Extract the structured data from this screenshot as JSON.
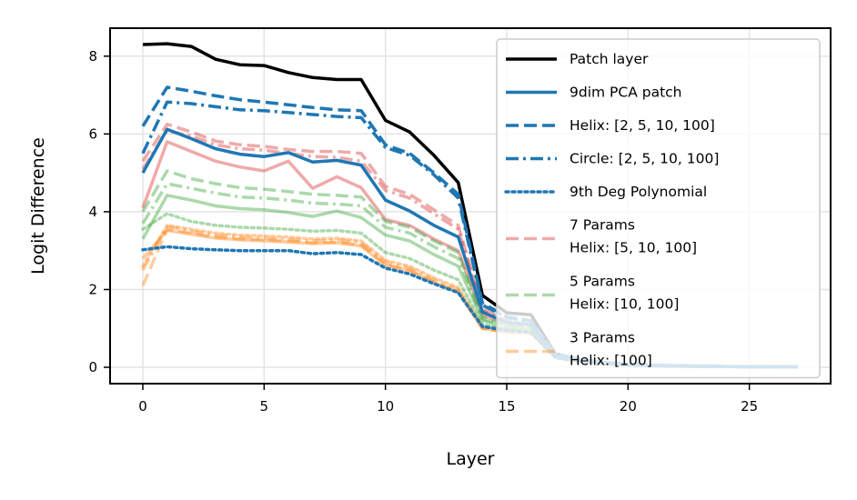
{
  "chart_data": {
    "type": "line",
    "title": "",
    "xlabel": "Layer",
    "ylabel": "Logit Difference",
    "xlim": [
      -1.35,
      28.35
    ],
    "ylim": [
      -0.42,
      8.72
    ],
    "xticks": [
      0,
      5,
      10,
      15,
      20,
      25
    ],
    "yticks": [
      0,
      2,
      4,
      6,
      8
    ],
    "grid": true,
    "legend_position": "top-right",
    "series": [
      {
        "name": "Patch layer",
        "label_lines": [
          "Patch layer"
        ],
        "color": "#000000",
        "style": "solid",
        "opacity": 1,
        "in_legend": true,
        "x": [
          0,
          1,
          2,
          3,
          4,
          5,
          6,
          7,
          8,
          9,
          10,
          11,
          12,
          13,
          14,
          15,
          16,
          17,
          18,
          19,
          20,
          21,
          22,
          23,
          24,
          25,
          26,
          27
        ],
        "values": [
          8.3,
          8.32,
          8.25,
          7.92,
          7.78,
          7.76,
          7.58,
          7.45,
          7.4,
          7.4,
          6.35,
          6.05,
          5.45,
          4.75,
          1.85,
          1.4,
          1.35,
          0.35,
          0.2,
          0.12,
          0.08,
          0.05,
          0.04,
          0.03,
          0.02,
          0.02,
          0.01,
          0.01
        ]
      },
      {
        "name": "9dim PCA patch",
        "label_lines": [
          "9dim PCA patch"
        ],
        "color": "#1f77b4",
        "style": "solid",
        "opacity": 1,
        "in_legend": true,
        "x": [
          0,
          1,
          2,
          3,
          4,
          5,
          6,
          7,
          8,
          9,
          10,
          11,
          12,
          13,
          14,
          15,
          16,
          17,
          18,
          19,
          20,
          21,
          22,
          23,
          24,
          25,
          26,
          27
        ],
        "values": [
          5.0,
          6.12,
          5.88,
          5.62,
          5.48,
          5.42,
          5.52,
          5.28,
          5.32,
          5.2,
          4.3,
          4.02,
          3.65,
          3.35,
          1.42,
          1.15,
          1.1,
          0.3,
          0.18,
          0.1,
          0.07,
          0.05,
          0.03,
          0.03,
          0.02,
          0.02,
          0.01,
          0.01
        ]
      },
      {
        "name": "Helix: [2, 5, 10, 100]",
        "label_lines": [
          "Helix: [2, 5, 10, 100]"
        ],
        "color": "#1f77b4",
        "style": "dashed",
        "opacity": 1,
        "in_legend": true,
        "x": [
          0,
          1,
          2,
          3,
          4,
          5,
          6,
          7,
          8,
          9,
          10,
          11,
          12,
          13,
          14,
          15,
          16,
          17,
          18,
          19,
          20,
          21,
          22,
          23,
          24,
          25,
          26,
          27
        ],
        "values": [
          6.2,
          7.2,
          7.1,
          6.98,
          6.88,
          6.82,
          6.75,
          6.68,
          6.62,
          6.6,
          5.72,
          5.5,
          5.0,
          4.45,
          1.65,
          1.3,
          1.2,
          0.35,
          0.2,
          0.12,
          0.08,
          0.05,
          0.04,
          0.03,
          0.02,
          0.02,
          0.01,
          0.01
        ]
      },
      {
        "name": "Circle: [2, 5, 10, 100]",
        "label_lines": [
          "Circle: [2, 5, 10, 100]"
        ],
        "color": "#1f77b4",
        "style": "dashdot",
        "opacity": 1,
        "in_legend": true,
        "x": [
          0,
          1,
          2,
          3,
          4,
          5,
          6,
          7,
          8,
          9,
          10,
          11,
          12,
          13,
          14,
          15,
          16,
          17,
          18,
          19,
          20,
          21,
          22,
          23,
          24,
          25,
          26,
          27
        ],
        "values": [
          5.5,
          6.82,
          6.78,
          6.7,
          6.62,
          6.6,
          6.55,
          6.5,
          6.45,
          6.42,
          5.65,
          5.45,
          4.95,
          4.35,
          1.6,
          1.28,
          1.18,
          0.34,
          0.2,
          0.12,
          0.08,
          0.05,
          0.04,
          0.03,
          0.02,
          0.02,
          0.01,
          0.01
        ]
      },
      {
        "name": "9th Deg Polynomial",
        "label_lines": [
          "9th Deg Polynomial"
        ],
        "color": "#1f77b4",
        "style": "dotted",
        "opacity": 1,
        "in_legend": true,
        "x": [
          0,
          1,
          2,
          3,
          4,
          5,
          6,
          7,
          8,
          9,
          10,
          11,
          12,
          13,
          14,
          15,
          16,
          17,
          18,
          19,
          20,
          21,
          22,
          23,
          24,
          25,
          26,
          27
        ],
        "values": [
          3.02,
          3.1,
          3.05,
          3.02,
          3.0,
          3.0,
          3.0,
          2.92,
          2.95,
          2.9,
          2.55,
          2.4,
          2.15,
          1.92,
          1.05,
          0.95,
          0.9,
          0.25,
          0.15,
          0.1,
          0.06,
          0.04,
          0.03,
          0.02,
          0.02,
          0.01,
          0.01,
          0.01
        ]
      },
      {
        "name": "7 Params Helix: [5, 10, 100]",
        "label_lines": [
          "7 Params",
          "Helix: [5, 10, 100]"
        ],
        "color": "#d62728",
        "style": "dashed",
        "opacity": 0.4,
        "in_legend": true,
        "x": [
          0,
          1,
          2,
          3,
          4,
          5,
          6,
          7,
          8,
          9,
          10,
          11,
          12,
          13,
          14,
          15,
          16,
          17,
          18,
          19,
          20,
          21,
          22,
          23,
          24,
          25,
          26,
          27
        ],
        "values": [
          5.3,
          6.25,
          6.05,
          5.82,
          5.72,
          5.68,
          5.6,
          5.55,
          5.55,
          5.5,
          4.65,
          4.45,
          4.05,
          3.65,
          1.5,
          1.2,
          1.12,
          0.32,
          0.18,
          0.1,
          0.07,
          0.05,
          0.03,
          0.03,
          0.02,
          0.02,
          0.01,
          0.01
        ]
      },
      {
        "name": "7 Params Helix: [5, 10, 100] (dash-dot)",
        "label_lines": [
          "7 Params Helix: [5, 10, 100] (dash-dot)"
        ],
        "color": "#d62728",
        "style": "dashdot",
        "opacity": 0.4,
        "in_legend": false,
        "x": [
          0,
          1,
          2,
          3,
          4,
          5,
          6,
          7,
          8,
          9,
          10,
          11,
          12,
          13,
          14,
          15,
          16,
          17,
          18,
          19,
          20,
          21,
          22,
          23,
          24,
          25,
          26,
          27
        ],
        "values": [
          5.1,
          6.08,
          5.95,
          5.72,
          5.62,
          5.58,
          5.5,
          5.42,
          5.4,
          5.3,
          4.55,
          4.35,
          3.95,
          3.55,
          1.45,
          1.18,
          1.1,
          0.31,
          0.18,
          0.1,
          0.07,
          0.05,
          0.03,
          0.03,
          0.02,
          0.02,
          0.01,
          0.01
        ]
      },
      {
        "name": "7 Params Helix: [5, 10, 100] (solid)",
        "label_lines": [
          "7 Params Helix: [5, 10, 100] (solid)"
        ],
        "color": "#d62728",
        "style": "solid",
        "opacity": 0.4,
        "in_legend": false,
        "x": [
          0,
          1,
          2,
          3,
          4,
          5,
          6,
          7,
          8,
          9,
          10,
          11,
          12,
          13,
          14,
          15,
          16,
          17,
          18,
          19,
          20,
          21,
          22,
          23,
          24,
          25,
          26,
          27
        ],
        "values": [
          4.1,
          5.8,
          5.55,
          5.3,
          5.15,
          5.05,
          5.3,
          4.6,
          4.9,
          4.62,
          3.8,
          3.65,
          3.3,
          3.0,
          1.35,
          1.1,
          1.05,
          0.3,
          0.17,
          0.1,
          0.07,
          0.05,
          0.03,
          0.03,
          0.02,
          0.02,
          0.01,
          0.01
        ]
      },
      {
        "name": "5 Params Helix: [10, 100]",
        "label_lines": [
          "5 Params",
          "Helix: [10, 100]"
        ],
        "color": "#2ca02c",
        "style": "dashed",
        "opacity": 0.4,
        "in_legend": true,
        "x": [
          0,
          1,
          2,
          3,
          4,
          5,
          6,
          7,
          8,
          9,
          10,
          11,
          12,
          13,
          14,
          15,
          16,
          17,
          18,
          19,
          20,
          21,
          22,
          23,
          24,
          25,
          26,
          27
        ],
        "values": [
          4.0,
          5.05,
          4.85,
          4.72,
          4.62,
          4.58,
          4.52,
          4.45,
          4.42,
          4.38,
          3.75,
          3.6,
          3.25,
          2.95,
          1.3,
          1.08,
          1.02,
          0.3,
          0.16,
          0.1,
          0.06,
          0.04,
          0.03,
          0.02,
          0.02,
          0.01,
          0.01,
          0.01
        ]
      },
      {
        "name": "5 Params Helix: [10, 100] (dash-dot)",
        "label_lines": [
          "5 Params Helix: [10, 100] (dash-dot)"
        ],
        "color": "#2ca02c",
        "style": "dashdot",
        "opacity": 0.4,
        "in_legend": false,
        "x": [
          0,
          1,
          2,
          3,
          4,
          5,
          6,
          7,
          8,
          9,
          10,
          11,
          12,
          13,
          14,
          15,
          16,
          17,
          18,
          19,
          20,
          21,
          22,
          23,
          24,
          25,
          26,
          27
        ],
        "values": [
          3.7,
          4.72,
          4.6,
          4.48,
          4.38,
          4.35,
          4.3,
          4.22,
          4.2,
          4.15,
          3.6,
          3.45,
          3.1,
          2.8,
          1.25,
          1.05,
          1.0,
          0.29,
          0.16,
          0.1,
          0.06,
          0.04,
          0.03,
          0.02,
          0.02,
          0.01,
          0.01,
          0.01
        ]
      },
      {
        "name": "5 Params Helix: [10, 100] (solid)",
        "label_lines": [
          "5 Params Helix: [10, 100] (solid)"
        ],
        "color": "#2ca02c",
        "style": "solid",
        "opacity": 0.4,
        "in_legend": false,
        "x": [
          0,
          1,
          2,
          3,
          4,
          5,
          6,
          7,
          8,
          9,
          10,
          11,
          12,
          13,
          14,
          15,
          16,
          17,
          18,
          19,
          20,
          21,
          22,
          23,
          24,
          25,
          26,
          27
        ],
        "values": [
          3.3,
          4.42,
          4.3,
          4.15,
          4.08,
          4.05,
          3.98,
          3.88,
          4.02,
          3.85,
          3.4,
          3.25,
          2.9,
          2.6,
          1.2,
          1.02,
          0.98,
          0.28,
          0.15,
          0.1,
          0.06,
          0.04,
          0.03,
          0.02,
          0.02,
          0.01,
          0.01,
          0.01
        ]
      },
      {
        "name": "5 Params Helix: [10, 100] (dotted)",
        "label_lines": [
          "5 Params Helix: [10, 100] (dotted)"
        ],
        "color": "#2ca02c",
        "style": "dotted",
        "opacity": 0.4,
        "in_legend": false,
        "x": [
          0,
          1,
          2,
          3,
          4,
          5,
          6,
          7,
          8,
          9,
          10,
          11,
          12,
          13,
          14,
          15,
          16,
          17,
          18,
          19,
          20,
          21,
          22,
          23,
          24,
          25,
          26,
          27
        ],
        "values": [
          3.55,
          3.95,
          3.75,
          3.65,
          3.6,
          3.58,
          3.55,
          3.5,
          3.52,
          3.45,
          2.95,
          2.8,
          2.5,
          2.25,
          1.1,
          0.98,
          0.95,
          0.27,
          0.15,
          0.1,
          0.06,
          0.04,
          0.03,
          0.02,
          0.02,
          0.01,
          0.01,
          0.01
        ]
      },
      {
        "name": "3 Params Helix: [100]",
        "label_lines": [
          "3 Params",
          "Helix: [100]"
        ],
        "color": "#ff7f0e",
        "style": "dashed",
        "opacity": 0.4,
        "in_legend": true,
        "x": [
          0,
          1,
          2,
          3,
          4,
          5,
          6,
          7,
          8,
          9,
          10,
          11,
          12,
          13,
          14,
          15,
          16,
          17,
          18,
          19,
          20,
          21,
          22,
          23,
          24,
          25,
          26,
          27
        ],
        "values": [
          2.1,
          3.55,
          3.45,
          3.35,
          3.3,
          3.28,
          3.25,
          3.2,
          3.22,
          3.15,
          2.65,
          2.5,
          2.2,
          1.95,
          1.0,
          0.9,
          0.88,
          0.25,
          0.14,
          0.09,
          0.05,
          0.04,
          0.03,
          0.02,
          0.02,
          0.01,
          0.01,
          0.01
        ]
      },
      {
        "name": "3 Params Helix: [100] (dash-dot)",
        "label_lines": [
          "3 Params Helix: [100] (dash-dot)"
        ],
        "color": "#ff7f0e",
        "style": "dashdot",
        "opacity": 0.4,
        "in_legend": false,
        "x": [
          0,
          1,
          2,
          3,
          4,
          5,
          6,
          7,
          8,
          9,
          10,
          11,
          12,
          13,
          14,
          15,
          16,
          17,
          18,
          19,
          20,
          21,
          22,
          23,
          24,
          25,
          26,
          27
        ],
        "values": [
          2.5,
          3.62,
          3.5,
          3.4,
          3.35,
          3.32,
          3.3,
          3.25,
          3.28,
          3.2,
          2.7,
          2.55,
          2.25,
          2.0,
          1.02,
          0.92,
          0.9,
          0.26,
          0.14,
          0.09,
          0.05,
          0.04,
          0.03,
          0.02,
          0.02,
          0.01,
          0.01,
          0.01
        ]
      },
      {
        "name": "3 Params Helix: [100] (solid)",
        "label_lines": [
          "3 Params Helix: [100] (solid)"
        ],
        "color": "#ff7f0e",
        "style": "solid",
        "opacity": 0.4,
        "in_legend": false,
        "x": [
          0,
          1,
          2,
          3,
          4,
          5,
          6,
          7,
          8,
          9,
          10,
          11,
          12,
          13,
          14,
          15,
          16,
          17,
          18,
          19,
          20,
          21,
          22,
          23,
          24,
          25,
          26,
          27
        ],
        "values": [
          2.8,
          3.52,
          3.42,
          3.32,
          3.28,
          3.25,
          3.22,
          3.18,
          3.2,
          3.12,
          2.62,
          2.48,
          2.18,
          1.92,
          1.0,
          0.9,
          0.87,
          0.25,
          0.14,
          0.09,
          0.05,
          0.04,
          0.03,
          0.02,
          0.02,
          0.01,
          0.01,
          0.01
        ]
      },
      {
        "name": "3 Params Helix: [100] (dotted)",
        "label_lines": [
          "3 Params Helix: [100] (dotted)"
        ],
        "color": "#ff7f0e",
        "style": "dotted",
        "opacity": 0.4,
        "in_legend": false,
        "x": [
          0,
          1,
          2,
          3,
          4,
          5,
          6,
          7,
          8,
          9,
          10,
          11,
          12,
          13,
          14,
          15,
          16,
          17,
          18,
          19,
          20,
          21,
          22,
          23,
          24,
          25,
          26,
          27
        ],
        "values": [
          2.6,
          3.65,
          3.55,
          3.45,
          3.4,
          3.38,
          3.35,
          3.3,
          3.32,
          3.25,
          2.75,
          2.6,
          2.3,
          2.05,
          1.05,
          0.93,
          0.9,
          0.26,
          0.14,
          0.09,
          0.05,
          0.04,
          0.03,
          0.02,
          0.02,
          0.01,
          0.01,
          0.01
        ]
      }
    ]
  }
}
